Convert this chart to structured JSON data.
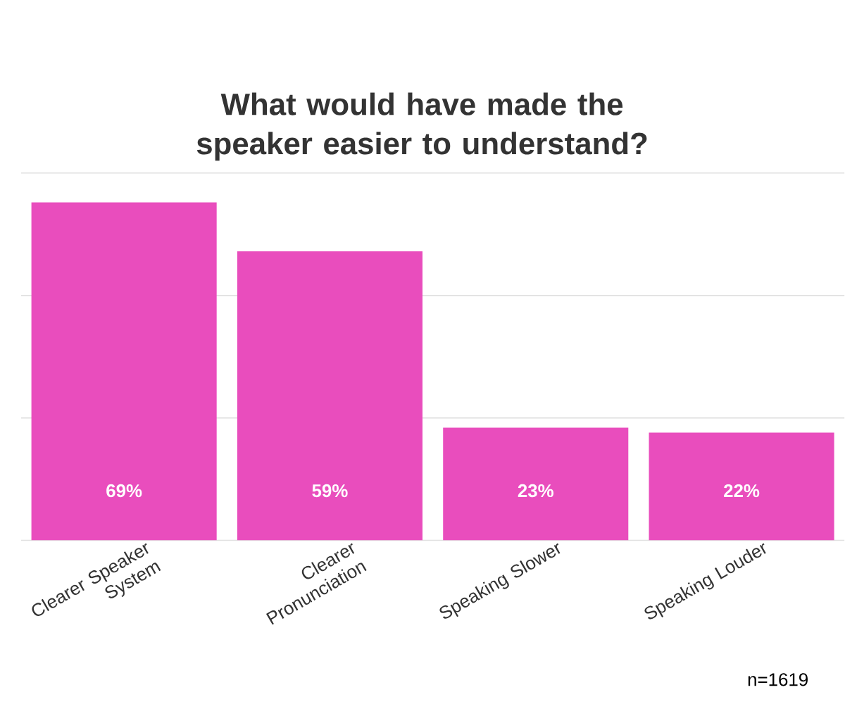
{
  "chart_data": {
    "type": "bar",
    "title": "What would have made the speaker easier to understand?",
    "categories": [
      "Clearer Speaker System",
      "Clearer Pronunciation",
      "Speaking Slower",
      "Speaking Louder"
    ],
    "values": [
      69,
      59,
      23,
      22
    ],
    "value_labels": [
      "69%",
      "59%",
      "23%",
      "22%"
    ],
    "color": "#e94dbd",
    "ylim": [
      0,
      75
    ],
    "yticks": [
      {
        "value": 0,
        "label": null
      },
      {
        "value": 25,
        "label": null
      },
      {
        "value": 50,
        "label": null
      },
      {
        "value": 75,
        "label": null
      }
    ],
    "tick_labels": "x",
    "grid": "y",
    "annotations": [
      "n=1619"
    ]
  }
}
